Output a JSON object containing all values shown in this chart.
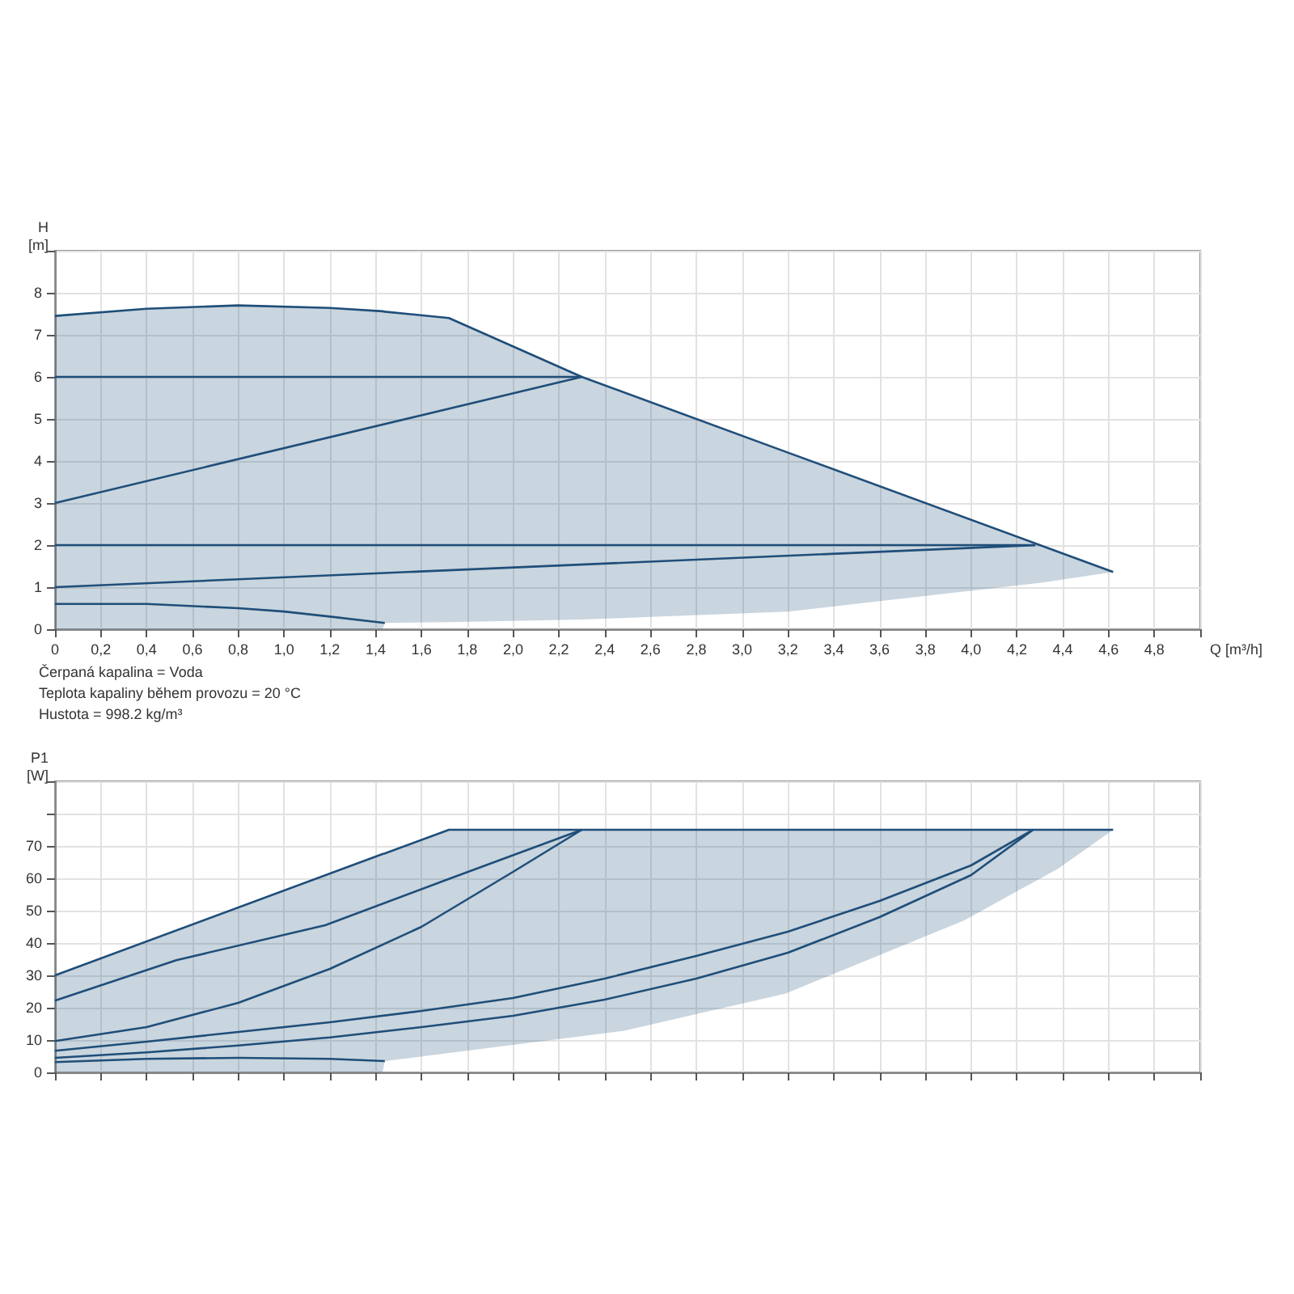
{
  "chart_data": [
    {
      "type": "line",
      "xlabel": "Q [m³/h]",
      "ylabel": "H [m]",
      "xlim": [
        0,
        5
      ],
      "ylim": [
        0,
        9
      ],
      "xticks": [
        0,
        {
          "value": 0.2,
          "label": "0,2"
        },
        {
          "value": 0.4,
          "label": "0,4"
        },
        {
          "value": 0.6,
          "label": "0,6"
        },
        {
          "value": 0.8,
          "label": "0,8"
        },
        {
          "value": 1,
          "label": "1,0"
        },
        {
          "value": 1.2,
          "label": "1,2"
        },
        {
          "value": 1.4,
          "label": "1,4"
        },
        {
          "value": 1.6,
          "label": "1,6"
        },
        {
          "value": 1.8,
          "label": "1,8"
        },
        {
          "value": 2,
          "label": "2,0"
        },
        {
          "value": 2.2,
          "label": "2,2"
        },
        {
          "value": 2.4,
          "label": "2,4"
        },
        {
          "value": 2.6,
          "label": "2,6"
        },
        {
          "value": 2.8,
          "label": "2,8"
        },
        {
          "value": 3,
          "label": "3,0"
        },
        {
          "value": 3.2,
          "label": "3,2"
        },
        {
          "value": 3.4,
          "label": "3,4"
        },
        {
          "value": 3.6,
          "label": "3,6"
        },
        {
          "value": 3.8,
          "label": "3,8"
        },
        {
          "value": 4,
          "label": "4,0"
        },
        {
          "value": 4.2,
          "label": "4,2"
        },
        {
          "value": 4.4,
          "label": "4,4"
        },
        {
          "value": 4.6,
          "label": "4,6"
        },
        {
          "value": 4.8,
          "label": "4,8"
        },
        {
          "value": 5,
          "label": null
        }
      ],
      "yticks": [
        0,
        1,
        2,
        3,
        4,
        5,
        6,
        7,
        8,
        {
          "value": 9,
          "label": null
        }
      ],
      "grid": true,
      "annotations": [
        "Čerpaná kapalina = Voda",
        "Teplota kapaliny během provozu = 20 °C",
        "Hustota = 998.2 kg/m³"
      ],
      "series": [
        {
          "color": "#1f4e79",
          "x": [
            0,
            0.4,
            0.8,
            1.2,
            1.43,
            1.44,
            1.72,
            2.3,
            3.2,
            4.3,
            4.62
          ],
          "values": [
            7.45,
            7.62,
            7.7,
            7.64,
            7.56,
            7.55,
            7.4,
            6.0,
            4.2,
            2.0,
            1.36
          ],
          "upper": [
            7.45,
            7.62,
            7.7,
            7.64,
            7.56,
            7.55,
            7.4,
            6.0,
            4.2,
            2.0,
            1.36
          ],
          "lower": [
            0,
            0,
            0,
            0,
            0,
            0.15,
            0.17,
            0.23,
            0.42,
            1.1,
            1.36
          ]
        },
        {
          "color": "#1f4e79",
          "x": [
            0,
            2.3
          ],
          "values": [
            6,
            6
          ]
        },
        {
          "color": "#1f4e79",
          "x": [
            0,
            2.3
          ],
          "values": [
            3,
            6
          ]
        },
        {
          "color": "#1f4e79",
          "x": [
            0,
            4.28
          ],
          "values": [
            2,
            2
          ]
        },
        {
          "color": "#1f4e79",
          "x": [
            0,
            4.28
          ],
          "values": [
            1,
            2
          ]
        },
        {
          "color": "#1f4e79",
          "x": [
            0,
            0.4,
            0.8,
            1.0,
            1.2,
            1.44
          ],
          "values": [
            0.6,
            0.6,
            0.5,
            0.42,
            0.3,
            0.15
          ]
        }
      ]
    },
    {
      "type": "line",
      "ylabel": "P1 [W]",
      "xlim": [
        0,
        5
      ],
      "ylim": [
        0,
        90
      ],
      "tick_labels": "y",
      "xticks": [
        0,
        0.2,
        0.4,
        0.6,
        0.8,
        1,
        1.2,
        1.4,
        1.6,
        1.8,
        2,
        2.2,
        2.4,
        2.6,
        2.8,
        3,
        3.2,
        3.4,
        3.6,
        3.8,
        4,
        4.2,
        4.4,
        4.6,
        4.8,
        5
      ],
      "yticks": [
        0,
        10,
        20,
        30,
        40,
        50,
        60,
        70,
        {
          "value": 80,
          "label": null
        },
        {
          "value": 90,
          "label": null
        }
      ],
      "grid": true,
      "series": [
        {
          "color": "#1f4e79",
          "x": [
            0,
            1.43,
            1.44,
            1.72,
            2.48,
            3.19,
            3.97,
            4.38,
            4.62
          ],
          "values": [
            30,
            67.5,
            67.7,
            75,
            75,
            75,
            75,
            75,
            75
          ],
          "upper": [
            30,
            67.5,
            67.7,
            75,
            75,
            75,
            75,
            75,
            75
          ],
          "lower": [
            0,
            0,
            3.5,
            6,
            12.8,
            24.4,
            47,
            63,
            75
          ]
        },
        {
          "color": "#1f4e79",
          "x": [
            0,
            0.53,
            1.18,
            1.72,
            2.3
          ],
          "values": [
            22.2,
            34.7,
            45.5,
            59.8,
            75
          ]
        },
        {
          "color": "#1f4e79",
          "x": [
            0,
            0.4,
            0.8,
            1.2,
            1.6,
            2.0,
            2.3
          ],
          "values": [
            9.7,
            14,
            21.5,
            32,
            45,
            62,
            75
          ]
        },
        {
          "color": "#1f4e79",
          "x": [
            0,
            0.4,
            0.8,
            1.2,
            1.6,
            2.0,
            2.4,
            2.8,
            3.2,
            3.6,
            4.0,
            4.27
          ],
          "values": [
            6.7,
            9.5,
            12.5,
            15.5,
            19,
            23,
            29,
            36,
            43.5,
            53,
            64,
            75
          ]
        },
        {
          "color": "#1f4e79",
          "x": [
            0,
            0.4,
            0.8,
            1.2,
            1.6,
            2.0,
            2.4,
            2.8,
            3.2,
            3.6,
            4.0,
            4.27
          ],
          "values": [
            4.5,
            6.2,
            8.3,
            10.8,
            14,
            17.5,
            22.5,
            29,
            37,
            48,
            61,
            75
          ]
        },
        {
          "color": "#1f4e79",
          "x": [
            0,
            0.4,
            0.8,
            1.2,
            1.44
          ],
          "values": [
            3.2,
            4.2,
            4.5,
            4.2,
            3.5
          ]
        }
      ]
    }
  ]
}
